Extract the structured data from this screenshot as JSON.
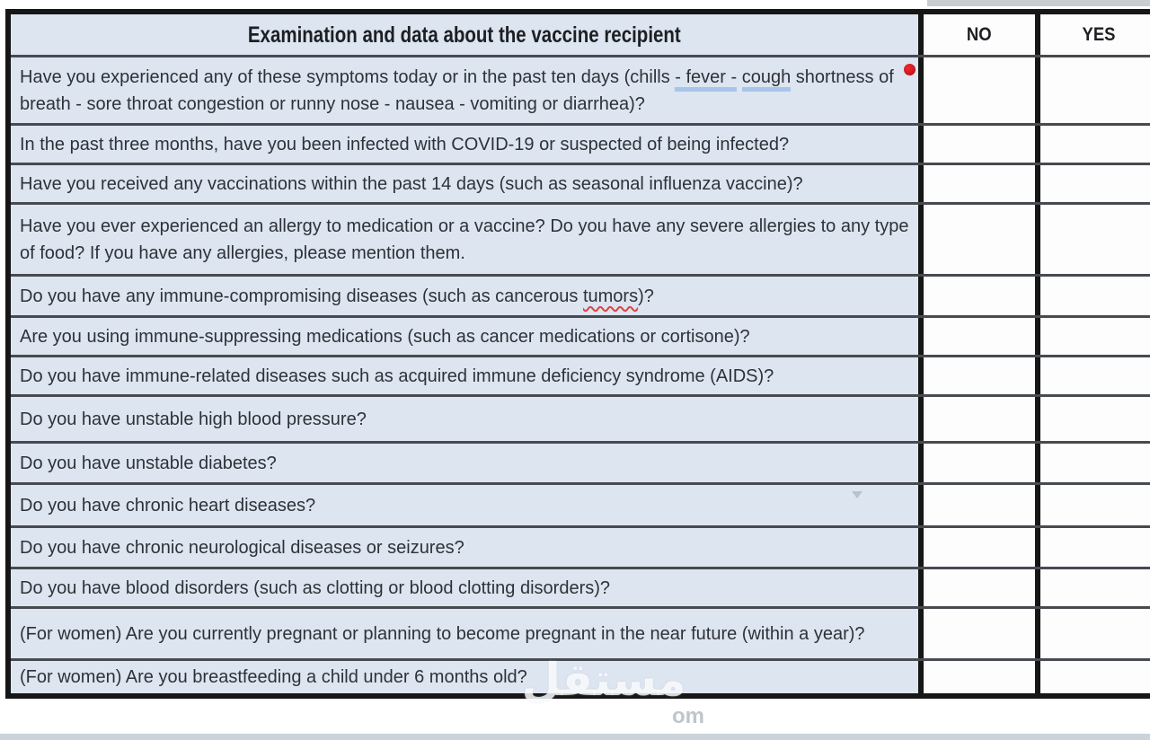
{
  "table": {
    "header": {
      "question": "Examination and data about the vaccine recipient",
      "no": "NO",
      "yes": "YES"
    },
    "rows": [
      {
        "question": "Have you experienced any of these symptoms today or in the past ten days (chills - fever - cough shortness of breath - sore throat congestion or runny nose - nausea - vomiting or diarrhea)?",
        "blue_underline_terms": [
          "- fever -",
          "cough"
        ],
        "no": "",
        "yes": ""
      },
      {
        "question": "In the past three months, have you been infected with COVID-19 or suspected of being infected?",
        "no": "",
        "yes": ""
      },
      {
        "question": "Have you received any vaccinations within the past 14 days (such as seasonal influenza vaccine)?",
        "no": "",
        "yes": ""
      },
      {
        "question": "Have you ever experienced an allergy to medication or a vaccine? Do you have any severe allergies to any type of food? If you have any allergies, please mention them.",
        "no": "",
        "yes": ""
      },
      {
        "question": "Do you have any immune-compromising diseases (such as cancerous tumors)?",
        "wavy_terms": [
          "tumors"
        ],
        "no": "",
        "yes": ""
      },
      {
        "question": "Are you using immune-suppressing medications (such as cancer medications or cortisone)?",
        "no": "",
        "yes": ""
      },
      {
        "question": "Do you have immune-related diseases such as acquired immune deficiency syndrome (AIDS)?",
        "no": "",
        "yes": ""
      },
      {
        "question": "Do you have unstable high blood pressure?",
        "no": "",
        "yes": ""
      },
      {
        "question": "Do you have unstable diabetes?",
        "no": "",
        "yes": ""
      },
      {
        "question": "Do you have chronic heart diseases?",
        "no": "",
        "yes": ""
      },
      {
        "question": "Do you have chronic neurological diseases or seizures?",
        "no": "",
        "yes": ""
      },
      {
        "question": "Do you have blood disorders (such as clotting or blood clotting disorders)?",
        "no": "",
        "yes": ""
      },
      {
        "question": "(For women) Are you currently pregnant or planning to become pregnant in the near future (within a year)?",
        "no": "",
        "yes": ""
      },
      {
        "question": "(For women) Are you breastfeeding a child under 6 months old?",
        "no": "",
        "yes": ""
      }
    ]
  },
  "annotations": {
    "red_dot_color": "#d11722",
    "blue_underline_color": "#a3c3e9",
    "wavy_underline_color": "#e04343"
  },
  "colors": {
    "question_bg": "#dce5f0",
    "answer_bg": "#fdfdfd",
    "outer_border": "#161616",
    "row_line": "#474b50",
    "text": "#2e3238"
  },
  "watermark": {
    "arabic": "مستقل",
    "latin": "om"
  }
}
